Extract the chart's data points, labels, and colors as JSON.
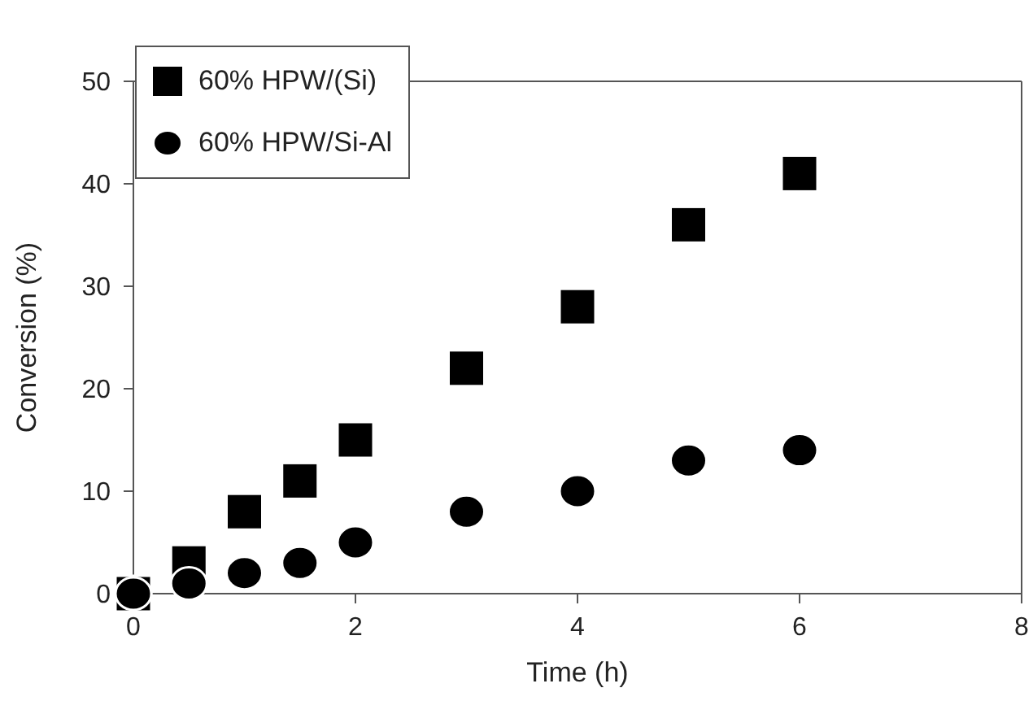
{
  "chart_data": {
    "type": "scatter",
    "xlabel": "Time (h)",
    "ylabel": "Conversion (%)",
    "x": [
      0,
      0.5,
      1,
      1.5,
      2,
      3,
      4,
      5,
      6
    ],
    "series": [
      {
        "name": "60% HPW/(Si)",
        "color": "#000000",
        "marker": "square",
        "values": [
          0,
          3,
          8,
          11,
          15,
          22,
          28,
          36,
          41
        ]
      },
      {
        "name": "60% HPW/Si-Al",
        "color": "#000000",
        "marker": "circle",
        "values": [
          0,
          1,
          2,
          3,
          5,
          8,
          10,
          13,
          14
        ]
      }
    ],
    "xlim": [
      0,
      8
    ],
    "xticks": [
      0,
      2,
      4,
      6,
      8
    ],
    "ylim": [
      0,
      50
    ],
    "yticks": [
      0,
      10,
      20,
      30,
      40,
      50
    ],
    "legend": "top left"
  }
}
